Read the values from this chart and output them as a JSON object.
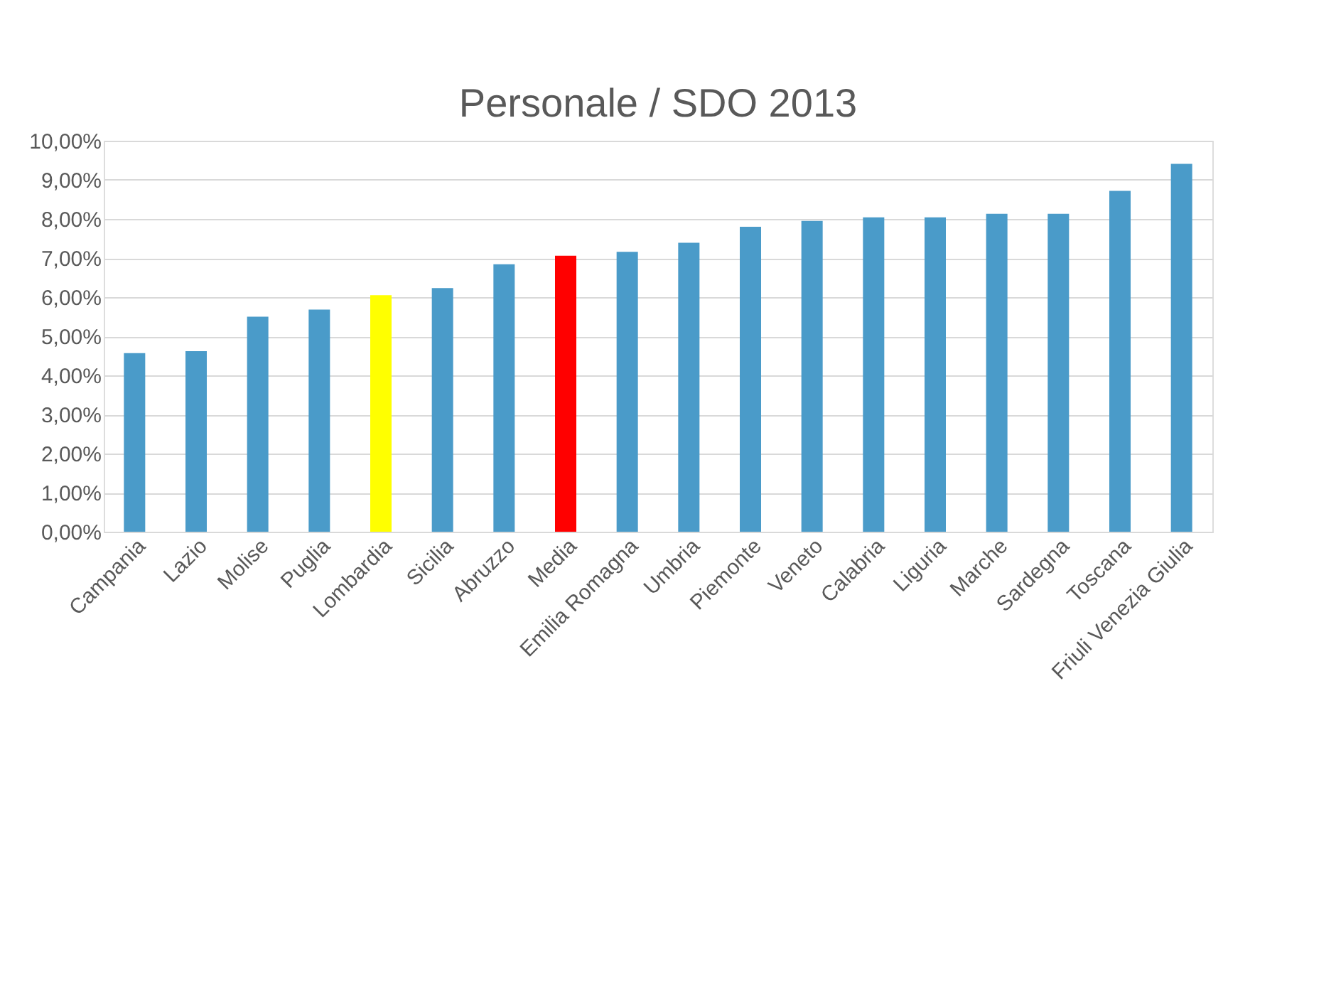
{
  "chart_data": {
    "type": "bar",
    "title": "Personale / SDO 2013",
    "categories": [
      "Campania",
      "Lazio",
      "Molise",
      "Puglia",
      "Lombardia",
      "Sicilia",
      "Abruzzo",
      "Media",
      "Emilia Romagna",
      "Umbria",
      "Piemonte",
      "Veneto",
      "Calabria",
      "Liguria",
      "Marche",
      "Sardegna",
      "Toscana",
      "Friuli Venezia Giulia"
    ],
    "values": [
      4.57,
      4.62,
      5.5,
      5.68,
      6.05,
      6.23,
      6.84,
      7.06,
      7.16,
      7.39,
      7.8,
      7.95,
      8.04,
      8.04,
      8.13,
      8.13,
      8.72,
      9.41
    ],
    "colors": [
      "#4a9bc9",
      "#4a9bc9",
      "#4a9bc9",
      "#4a9bc9",
      "#ffff00",
      "#4a9bc9",
      "#4a9bc9",
      "#ff0000",
      "#4a9bc9",
      "#4a9bc9",
      "#4a9bc9",
      "#4a9bc9",
      "#4a9bc9",
      "#4a9bc9",
      "#4a9bc9",
      "#4a9bc9",
      "#4a9bc9",
      "#4a9bc9"
    ],
    "ylim": [
      0,
      10
    ],
    "yticks": [
      {
        "value": 0,
        "label": "0,00%"
      },
      {
        "value": 1,
        "label": "1,00%"
      },
      {
        "value": 2,
        "label": "2,00%"
      },
      {
        "value": 3,
        "label": "3,00%"
      },
      {
        "value": 4,
        "label": "4,00%"
      },
      {
        "value": 5,
        "label": "5,00%"
      },
      {
        "value": 6,
        "label": "6,00%"
      },
      {
        "value": 7,
        "label": "7,00%"
      },
      {
        "value": 8,
        "label": "8,00%"
      },
      {
        "value": 9,
        "label": "9,00%"
      },
      {
        "value": 10,
        "label": "10,00%"
      }
    ],
    "grid": "y"
  }
}
